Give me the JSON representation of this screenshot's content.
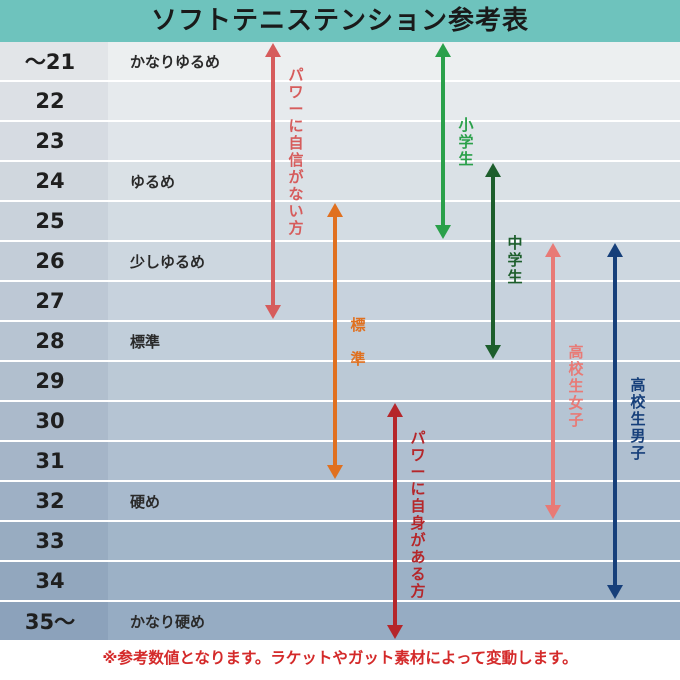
{
  "title": "ソフトテニステンション参考表",
  "note": "※参考数値となります。ラケットやガット素材によって変動します。",
  "colors": {
    "title_bar": "#6ec3bd",
    "note_text": "#d42a2a"
  },
  "chart_data": {
    "type": "range",
    "title": "ソフトテニステンション参考表",
    "categories": [
      "～21",
      "22",
      "23",
      "24",
      "25",
      "26",
      "27",
      "28",
      "29",
      "30",
      "31",
      "32",
      "33",
      "34",
      "35～"
    ],
    "tension_labels": [
      "かなりゆるめ",
      "",
      "",
      "ゆるめ",
      "",
      "少しゆるめ",
      "",
      "標準",
      "",
      "",
      "",
      "硬め",
      "",
      "",
      "かなり硬め"
    ],
    "series": [
      {
        "name": "パワーに自信がない方",
        "start": "～21",
        "end": "27",
        "color": "#d65c5c",
        "label_side": "right"
      },
      {
        "name": "小学生",
        "start": "～21",
        "end": "25",
        "color": "#2aa04a",
        "label_side": "right"
      },
      {
        "name": "中学生",
        "start": "24",
        "end": "28",
        "color": "#1d5e2c",
        "label_side": "left"
      },
      {
        "name": "標準",
        "start": "25",
        "end": "31",
        "color": "#e0701f",
        "label_side": "right"
      },
      {
        "name": "パワーに自身がある方",
        "start": "30",
        "end": "35～",
        "color": "#b5262a",
        "label_side": "right"
      },
      {
        "name": "高校生女子",
        "start": "26",
        "end": "32",
        "color": "#e87a76",
        "label_side": "right"
      },
      {
        "name": "高校生男子",
        "start": "26",
        "end": "34",
        "color": "#163f7a",
        "label_side": "right"
      }
    ]
  }
}
